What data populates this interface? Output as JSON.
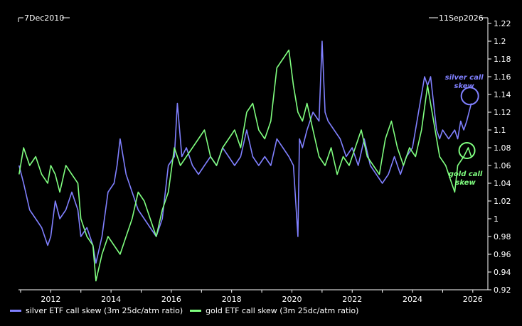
{
  "chart_data": {
    "type": "line",
    "date_range": {
      "start": "7Dec2010",
      "end": "11Sep2026"
    },
    "xlim": [
      2010.93,
      2026.5
    ],
    "ylim": [
      0.92,
      1.22
    ],
    "x_ticks": [
      2012,
      2014,
      2016,
      2018,
      2020,
      2022,
      2024,
      2026
    ],
    "y_ticks": [
      0.92,
      0.94,
      0.96,
      0.98,
      1.0,
      1.02,
      1.04,
      1.06,
      1.08,
      1.1,
      1.12,
      1.14,
      1.16,
      1.18,
      1.2,
      1.22
    ],
    "y_tick_labels": [
      "0.92",
      "0.94",
      "0.96",
      "0.98",
      "1",
      "1.02",
      "1.04",
      "1.06",
      "1.08",
      "1.1",
      "1.12",
      "1.14",
      "1.16",
      "1.18",
      "1.2",
      "1.22"
    ],
    "grid": false,
    "legend_position": "bottom-left",
    "series": [
      {
        "name": "silver ETF call skew (3m 25dc/atm ratio)",
        "color": "#8080ff",
        "x": [
          2010.95,
          2011.1,
          2011.3,
          2011.5,
          2011.7,
          2011.9,
          2012.0,
          2012.15,
          2012.3,
          2012.5,
          2012.7,
          2012.9,
          2013.0,
          2013.2,
          2013.4,
          2013.5,
          2013.7,
          2013.9,
          2014.1,
          2014.2,
          2014.3,
          2014.5,
          2014.7,
          2014.9,
          2015.1,
          2015.3,
          2015.5,
          2015.7,
          2015.9,
          2016.1,
          2016.2,
          2016.35,
          2016.5,
          2016.7,
          2016.9,
          2017.1,
          2017.3,
          2017.5,
          2017.7,
          2017.9,
          2018.1,
          2018.3,
          2018.5,
          2018.7,
          2018.9,
          2019.1,
          2019.3,
          2019.5,
          2019.7,
          2019.9,
          2020.05,
          2020.2,
          2020.25,
          2020.35,
          2020.5,
          2020.7,
          2020.9,
          2021.0,
          2021.1,
          2021.2,
          2021.4,
          2021.6,
          2021.8,
          2022.0,
          2022.2,
          2022.4,
          2022.6,
          2022.8,
          2023.0,
          2023.2,
          2023.4,
          2023.6,
          2023.8,
          2024.0,
          2024.2,
          2024.4,
          2024.5,
          2024.6,
          2024.7,
          2024.8,
          2024.9,
          2025.0,
          2025.2,
          2025.4,
          2025.5,
          2025.6,
          2025.7,
          2025.8,
          2025.95
        ],
        "values": [
          1.06,
          1.04,
          1.01,
          1.0,
          0.99,
          0.97,
          0.98,
          1.02,
          1.0,
          1.01,
          1.03,
          1.01,
          0.98,
          0.99,
          0.97,
          0.95,
          0.98,
          1.03,
          1.04,
          1.06,
          1.09,
          1.05,
          1.03,
          1.01,
          1.0,
          0.99,
          0.98,
          1.0,
          1.06,
          1.07,
          1.13,
          1.07,
          1.08,
          1.06,
          1.05,
          1.06,
          1.07,
          1.06,
          1.08,
          1.07,
          1.06,
          1.07,
          1.1,
          1.07,
          1.06,
          1.07,
          1.06,
          1.09,
          1.08,
          1.07,
          1.06,
          0.98,
          1.09,
          1.08,
          1.1,
          1.12,
          1.11,
          1.2,
          1.12,
          1.11,
          1.1,
          1.09,
          1.07,
          1.08,
          1.06,
          1.09,
          1.06,
          1.05,
          1.04,
          1.05,
          1.07,
          1.05,
          1.07,
          1.08,
          1.12,
          1.16,
          1.15,
          1.16,
          1.13,
          1.1,
          1.09,
          1.1,
          1.09,
          1.1,
          1.09,
          1.11,
          1.1,
          1.11,
          1.13
        ]
      },
      {
        "name": "gold ETF call skew (3m 25dc/atm ratio)",
        "color": "#80ff80",
        "x": [
          2010.95,
          2011.1,
          2011.3,
          2011.5,
          2011.7,
          2011.9,
          2012.0,
          2012.15,
          2012.3,
          2012.5,
          2012.7,
          2012.9,
          2013.0,
          2013.2,
          2013.4,
          2013.5,
          2013.7,
          2013.9,
          2014.1,
          2014.3,
          2014.5,
          2014.7,
          2014.9,
          2015.1,
          2015.3,
          2015.5,
          2015.7,
          2015.9,
          2016.1,
          2016.3,
          2016.5,
          2016.7,
          2016.9,
          2017.1,
          2017.3,
          2017.5,
          2017.7,
          2017.9,
          2018.1,
          2018.3,
          2018.5,
          2018.7,
          2018.9,
          2019.1,
          2019.3,
          2019.5,
          2019.7,
          2019.9,
          2020.05,
          2020.2,
          2020.35,
          2020.5,
          2020.7,
          2020.9,
          2021.1,
          2021.3,
          2021.5,
          2021.7,
          2021.9,
          2022.1,
          2022.3,
          2022.5,
          2022.7,
          2022.9,
          2023.1,
          2023.3,
          2023.5,
          2023.7,
          2023.9,
          2024.1,
          2024.3,
          2024.5,
          2024.7,
          2024.9,
          2025.1,
          2025.3,
          2025.4,
          2025.5,
          2025.7,
          2025.85,
          2025.95
        ],
        "values": [
          1.05,
          1.08,
          1.06,
          1.07,
          1.05,
          1.04,
          1.06,
          1.05,
          1.03,
          1.06,
          1.05,
          1.04,
          1.0,
          0.98,
          0.97,
          0.93,
          0.96,
          0.98,
          0.97,
          0.96,
          0.98,
          1.0,
          1.03,
          1.02,
          1.0,
          0.98,
          1.01,
          1.03,
          1.08,
          1.06,
          1.07,
          1.08,
          1.09,
          1.1,
          1.07,
          1.06,
          1.08,
          1.09,
          1.1,
          1.08,
          1.12,
          1.13,
          1.1,
          1.09,
          1.11,
          1.17,
          1.18,
          1.19,
          1.15,
          1.12,
          1.11,
          1.13,
          1.1,
          1.07,
          1.06,
          1.08,
          1.05,
          1.07,
          1.06,
          1.08,
          1.1,
          1.07,
          1.06,
          1.05,
          1.09,
          1.11,
          1.08,
          1.06,
          1.08,
          1.07,
          1.1,
          1.15,
          1.11,
          1.07,
          1.06,
          1.04,
          1.03,
          1.06,
          1.07,
          1.08,
          1.07
        ]
      }
    ],
    "annotations": [
      {
        "text": [
          "silver call",
          "skew"
        ],
        "color": "#8080ff",
        "target": {
          "x": 2025.95,
          "y": 1.135
        }
      },
      {
        "text": [
          "gold call",
          "skew"
        ],
        "color": "#80ff80",
        "target": {
          "x": 2025.9,
          "y": 1.08
        }
      }
    ]
  },
  "theme": {
    "background": "#000000",
    "axis_color": "#ffffff",
    "text_color": "#ffffff"
  }
}
